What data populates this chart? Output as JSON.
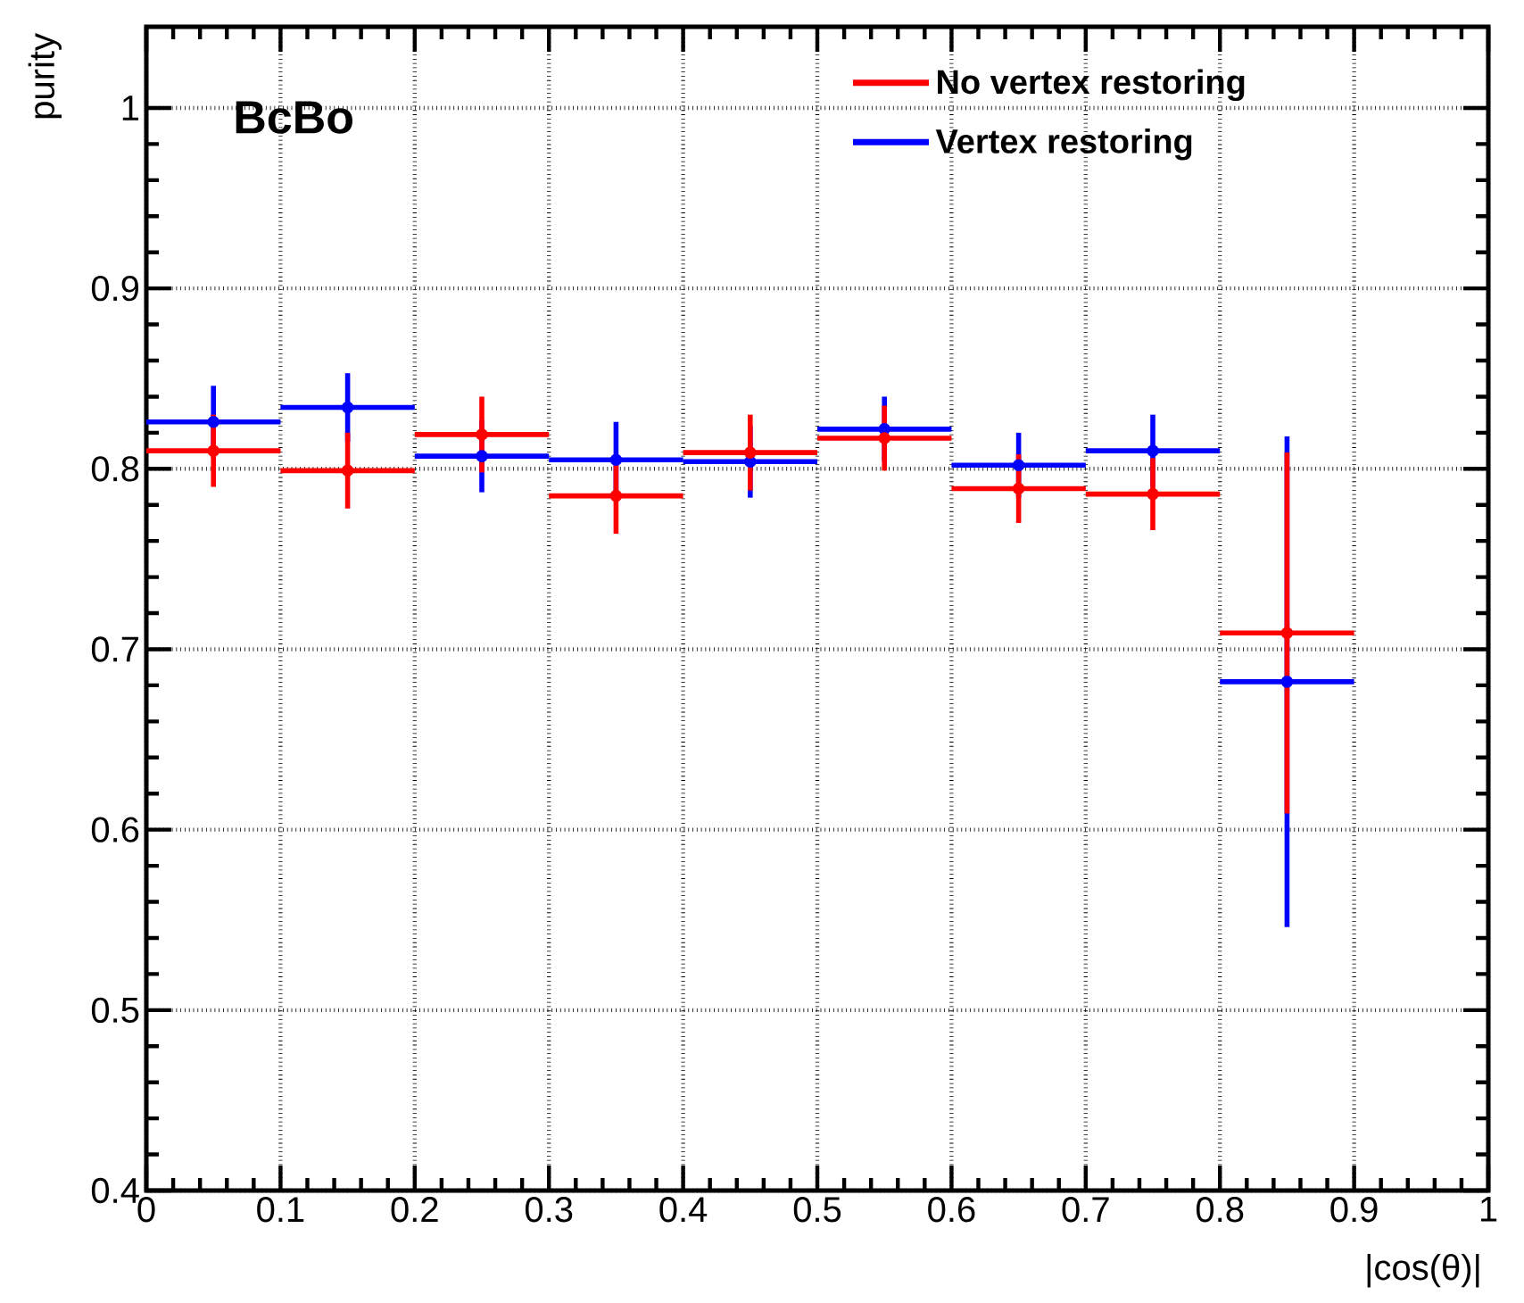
{
  "chart_data": {
    "type": "scatter",
    "xlabel": "|cos(θ)|",
    "ylabel": "purity",
    "annotations": [
      "BcBo"
    ],
    "x": [
      0.05,
      0.15,
      0.25,
      0.35,
      0.45,
      0.55,
      0.65,
      0.75,
      0.85
    ],
    "series": [
      {
        "name": "No vertex restoring",
        "color": "#ff0000",
        "values": [
          0.81,
          0.799,
          0.819,
          0.785,
          0.809,
          0.817,
          0.789,
          0.786,
          0.709
        ],
        "errors": [
          0.02,
          0.021,
          0.021,
          0.021,
          0.021,
          0.018,
          0.019,
          0.02,
          0.1
        ],
        "xerrors": [
          0.05,
          0.05,
          0.05,
          0.05,
          0.05,
          0.05,
          0.05,
          0.05,
          0.05
        ]
      },
      {
        "name": "Vertex restoring",
        "color": "#0000ff",
        "values": [
          0.826,
          0.834,
          0.807,
          0.805,
          0.804,
          0.822,
          0.802,
          0.81,
          0.682
        ],
        "errors": [
          0.02,
          0.019,
          0.02,
          0.021,
          0.02,
          0.018,
          0.018,
          0.02,
          0.136
        ],
        "xerrors": [
          0.05,
          0.05,
          0.05,
          0.05,
          0.05,
          0.05,
          0.05,
          0.05,
          0.05
        ]
      }
    ],
    "xlim": [
      0,
      1
    ],
    "ylim": [
      0.4,
      1.045
    ],
    "xticks": [
      0,
      0.1,
      0.2,
      0.3,
      0.4,
      0.5,
      0.6,
      0.7,
      0.8,
      0.9,
      1
    ],
    "yticks": [
      0.4,
      0.5,
      0.6,
      0.7,
      0.8,
      0.9,
      1
    ],
    "grid": true,
    "legend": "top right"
  }
}
